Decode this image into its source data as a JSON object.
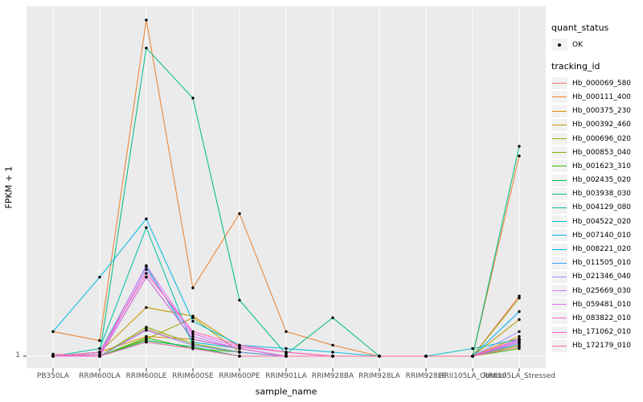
{
  "figure": {
    "panel_background": "#EBEBEB",
    "gridline_color": "#FFFFFF",
    "tick_color": "#333333",
    "tick_label_color": "#4D4D4D",
    "point_color": "#000000",
    "legend_key_background": "#F2F2F2"
  },
  "axes": {
    "x_title": "sample_name",
    "y_title": "FPKM + 1",
    "y_tick_labels": [
      "1"
    ]
  },
  "legend": {
    "quant_status": {
      "title": "quant_status",
      "items": [
        {
          "label": "OK",
          "shape": "point"
        }
      ]
    },
    "tracking": {
      "title": "tracking_id"
    }
  },
  "chart_data": {
    "type": "line",
    "title": "",
    "xlabel": "sample_name",
    "ylabel": "FPKM + 1",
    "y_scale": "log10",
    "ylim": [
      1,
      3200
    ],
    "grid": true,
    "legend_position": "right",
    "point_shape": "filled-dot",
    "quant_status": "OK",
    "categories": [
      "PB350LA",
      "RRIM600LA",
      "RRIM600LE",
      "RRIM600SE",
      "RRIM600PE",
      "RRIM901LA",
      "RRIM928BA",
      "RRIM928LA",
      "RRIM928LE",
      "RRII105LA_Control",
      "RRII105LA_Stressed"
    ],
    "series": [
      {
        "name": "Hb_000069_580",
        "color": "#F8766D",
        "values": [
          1,
          1,
          1.9,
          1.3,
          1.1,
          1,
          1,
          1,
          1,
          1,
          4.2
        ]
      },
      {
        "name": "Hb_000111_400",
        "color": "#EA8331",
        "values": [
          1.8,
          1.45,
          3050,
          5.1,
          30,
          1.8,
          1.3,
          1,
          1,
          1,
          119
        ]
      },
      {
        "name": "Hb_000375_230",
        "color": "#D89000",
        "values": [
          1,
          1.1,
          1.6,
          1.5,
          1.2,
          1,
          1,
          1,
          1,
          1,
          1.6
        ]
      },
      {
        "name": "Hb_000392_460",
        "color": "#C09B00",
        "values": [
          1,
          1.1,
          3.2,
          2.6,
          1.25,
          1.1,
          1,
          1,
          1,
          1,
          2.4
        ]
      },
      {
        "name": "Hb_000696_020",
        "color": "#A3A500",
        "values": [
          1,
          1,
          1.5,
          2.5,
          1.1,
          1,
          1,
          1,
          1,
          1,
          4.0
        ]
      },
      {
        "name": "Hb_000853_040",
        "color": "#7CAE00",
        "values": [
          1,
          1,
          2.0,
          1.35,
          1.1,
          1,
          1,
          1,
          1,
          1,
          1.3
        ]
      },
      {
        "name": "Hb_001623_310",
        "color": "#39B600",
        "values": [
          1,
          1,
          1.55,
          1.2,
          1.1,
          1,
          1,
          1,
          1,
          1,
          1.2
        ]
      },
      {
        "name": "Hb_002435_020",
        "color": "#00BB4E",
        "values": [
          1,
          1,
          1.45,
          1.25,
          1,
          1,
          1,
          1,
          1,
          1,
          1.5
        ]
      },
      {
        "name": "Hb_003938_030",
        "color": "#00BF7D",
        "values": [
          1,
          1.05,
          1560,
          473,
          3.8,
          1.05,
          2.5,
          1,
          1,
          1,
          150
        ]
      },
      {
        "name": "Hb_004129_080",
        "color": "#00C1A3",
        "values": [
          1,
          1.2,
          21.5,
          1.3,
          1.1,
          1,
          1,
          1,
          1,
          1,
          1.4
        ]
      },
      {
        "name": "Hb_004522_020",
        "color": "#00BFC4",
        "values": [
          1,
          1.1,
          8.5,
          1.4,
          1.2,
          1,
          1,
          1,
          1,
          1.2,
          1.5
        ]
      },
      {
        "name": "Hb_007140_010",
        "color": "#00BAE0",
        "values": [
          1.8,
          6.6,
          26.5,
          2.3,
          1.3,
          1.2,
          1.1,
          1,
          1,
          1,
          1.5
        ]
      },
      {
        "name": "Hb_008221_020",
        "color": "#00B0F6",
        "values": [
          1,
          1,
          6.6,
          1.5,
          1.2,
          1,
          1,
          1,
          1,
          1,
          2.9
        ]
      },
      {
        "name": "Hb_011505_010",
        "color": "#35A2FF",
        "values": [
          1,
          1,
          1.4,
          1.2,
          1,
          1,
          1,
          1,
          1,
          1,
          1.35
        ]
      },
      {
        "name": "Hb_021346_040",
        "color": "#9590FF",
        "values": [
          1,
          1,
          1.85,
          1.3,
          1.1,
          1,
          1,
          1,
          1,
          1,
          1.8
        ]
      },
      {
        "name": "Hb_025669_030",
        "color": "#C77CFF",
        "values": [
          1,
          1,
          7.9,
          1.6,
          1.2,
          1,
          1,
          1,
          1,
          1,
          1.45
        ]
      },
      {
        "name": "Hb_059481_010",
        "color": "#E76BF3",
        "values": [
          1,
          1.05,
          8.7,
          1.7,
          1.25,
          1.1,
          1,
          1,
          1,
          1,
          1.5
        ]
      },
      {
        "name": "Hb_083822_010",
        "color": "#FA62DB",
        "values": [
          1,
          1,
          6.6,
          1.5,
          1.2,
          1,
          1,
          1,
          1,
          1,
          1.4
        ]
      },
      {
        "name": "Hb_171062_010",
        "color": "#FF62BC",
        "values": [
          1,
          1.1,
          7.2,
          1.8,
          1.3,
          1.1,
          1,
          1,
          1,
          1,
          1.5
        ]
      },
      {
        "name": "Hb_172179_010",
        "color": "#FF6A98",
        "values": [
          1.05,
          1,
          1.4,
          1.2,
          1,
          1,
          1,
          1,
          1,
          1,
          1.25
        ]
      }
    ]
  }
}
